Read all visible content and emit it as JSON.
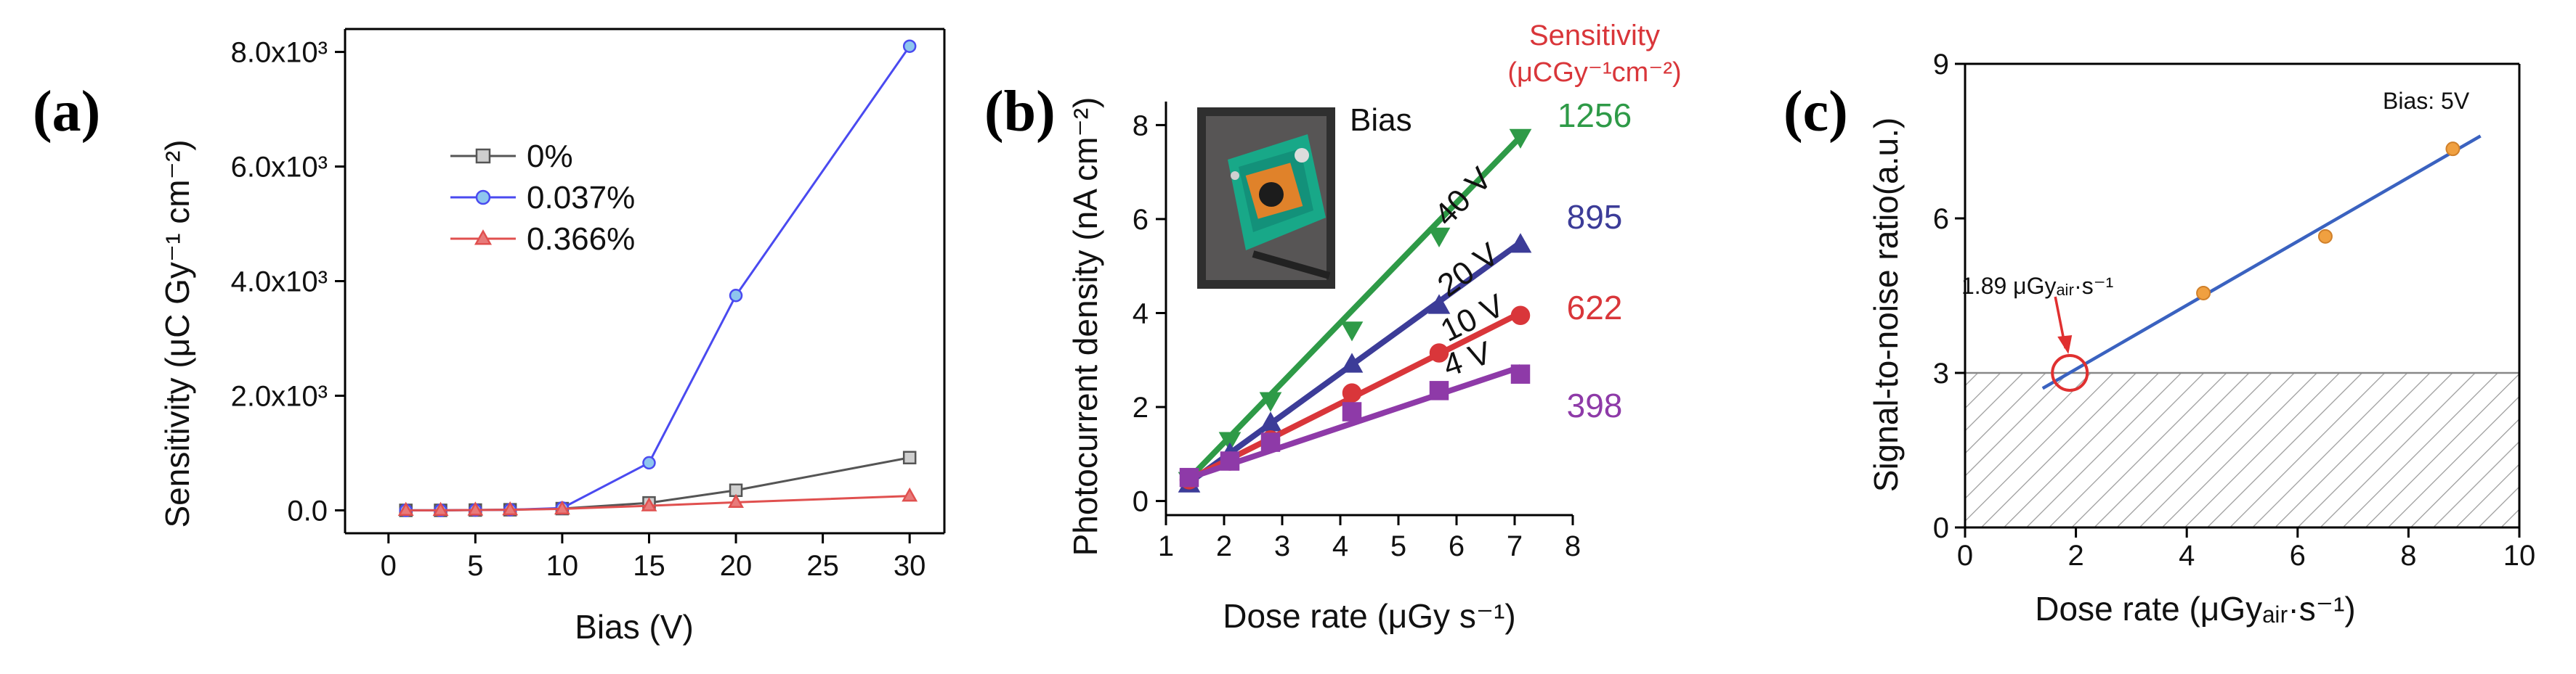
{
  "chart_data": [
    {
      "panel": "(a)",
      "type": "line",
      "xlabel": "Bias (V)",
      "ylabel": "Sensitivity (μC Gy⁻¹ cm⁻²)",
      "xlim": [
        -2.5,
        32
      ],
      "ylim": [
        -400,
        8400
      ],
      "xticks": [
        0,
        5,
        10,
        15,
        20,
        25,
        30
      ],
      "yticks": [
        0,
        2000,
        4000,
        6000,
        8000
      ],
      "ytick_labels": [
        "0.0",
        "2.0x10³",
        "4.0x10³",
        "6.0x10³",
        "8.0x10³"
      ],
      "legend": "upper-left",
      "series": [
        {
          "name": "0%",
          "color": "#555555",
          "marker": "square",
          "x": [
            1,
            3,
            5,
            7,
            10,
            15,
            20,
            30
          ],
          "y": [
            0,
            0,
            5,
            10,
            30,
            130,
            350,
            920
          ]
        },
        {
          "name": "0.037%",
          "color": "#4a4af0",
          "marker": "circle",
          "x": [
            1,
            3,
            5,
            7,
            10,
            15,
            20,
            30
          ],
          "y": [
            0,
            0,
            5,
            10,
            40,
            830,
            3750,
            8100
          ]
        },
        {
          "name": "0.366%",
          "color": "#e0504f",
          "marker": "triangle",
          "x": [
            1,
            3,
            5,
            7,
            10,
            15,
            20,
            30
          ],
          "y": [
            0,
            0,
            5,
            10,
            25,
            80,
            140,
            250
          ]
        }
      ]
    },
    {
      "panel": "(b)",
      "type": "scatter",
      "xlabel": "Dose rate (μGy s⁻¹)",
      "ylabel": "Photocurrent density (nA cm⁻²)",
      "xlim": [
        1,
        8
      ],
      "ylim": [
        -0.3,
        8.5
      ],
      "xticks": [
        1,
        2,
        3,
        4,
        5,
        6,
        7,
        8
      ],
      "yticks": [
        0,
        2,
        4,
        6,
        8
      ],
      "inset_label": "Bias",
      "sensitivity_header": [
        "Sensitivity",
        "(μCGy⁻¹cm⁻²)"
      ],
      "series": [
        {
          "name": "40 V",
          "sensitivity": "1256",
          "color": "#2e9a47",
          "marker": "triangle-down",
          "x": [
            1.4,
            2.1,
            2.8,
            4.2,
            5.7,
            7.1
          ],
          "y": [
            0.45,
            1.3,
            2.15,
            3.65,
            5.65,
            7.75
          ],
          "fit": [
            [
              1.3,
              0.35
            ],
            [
              7.1,
              7.75
            ]
          ]
        },
        {
          "name": "20 V",
          "sensitivity": "895",
          "color": "#3c3c98",
          "marker": "triangle-up",
          "x": [
            1.4,
            2.1,
            2.8,
            4.2,
            5.7,
            7.1
          ],
          "y": [
            0.35,
            1.0,
            1.65,
            2.9,
            4.15,
            5.45
          ],
          "fit": [
            [
              1.3,
              0.3
            ],
            [
              7.1,
              5.5
            ]
          ]
        },
        {
          "name": "10 V",
          "sensitivity": "622",
          "color": "#d9363a",
          "marker": "circle",
          "x": [
            1.4,
            2.1,
            2.8,
            4.2,
            5.7,
            7.1
          ],
          "y": [
            0.45,
            0.85,
            1.3,
            2.3,
            3.15,
            3.95
          ],
          "fit": [
            [
              1.3,
              0.4
            ],
            [
              7.1,
              4.0
            ]
          ]
        },
        {
          "name": "4 V",
          "sensitivity": "398",
          "color": "#8e3aa8",
          "marker": "square",
          "x": [
            1.4,
            2.1,
            2.8,
            4.2,
            5.7,
            7.1
          ],
          "y": [
            0.5,
            0.85,
            1.25,
            1.9,
            2.35,
            2.7
          ],
          "fit": [
            [
              1.3,
              0.45
            ],
            [
              7.1,
              2.85
            ]
          ]
        }
      ]
    },
    {
      "panel": "(c)",
      "type": "scatter",
      "xlabel": "Dose rate (μGyₐᵢᵣ·s⁻¹)",
      "ylabel": "Signal-to-noise ratio(a.u.)",
      "xlim": [
        0,
        10
      ],
      "ylim": [
        0,
        9
      ],
      "xticks": [
        0,
        2,
        4,
        6,
        8,
        10
      ],
      "yticks": [
        0,
        3,
        6,
        9
      ],
      "annotation": "Bias: 5V",
      "threshold_label": "1.89 μGyₐᵢᵣ·s⁻¹",
      "threshold": {
        "x": 1.89,
        "y": 3.0
      },
      "hatched_below_y": 3,
      "points": {
        "x": [
          4.3,
          6.5,
          8.8
        ],
        "y": [
          4.55,
          5.65,
          7.35
        ],
        "color": "#f0a040"
      },
      "fit": {
        "color": "#3a62c0",
        "from": [
          1.4,
          2.7
        ],
        "to": [
          9.3,
          7.6
        ]
      }
    }
  ]
}
